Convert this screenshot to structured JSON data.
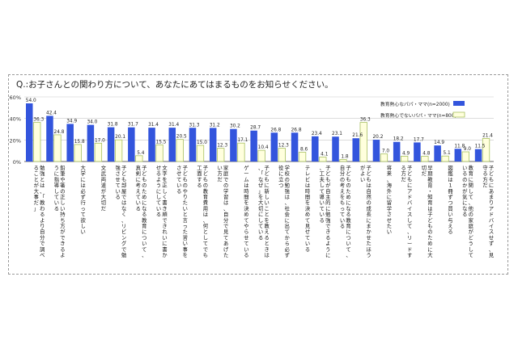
{
  "question": "Q.:お子さんとの関わり方について、あなたにあてはまるものをお知らせください。",
  "chart_data": {
    "type": "bar",
    "ylim": [
      0,
      60
    ],
    "yticks": [
      "0%",
      "20%",
      "40%",
      "60%"
    ],
    "colors": {
      "series1": "#3355dd",
      "series2": "#ffffdd",
      "series2_border": "#a8c060"
    },
    "series": [
      {
        "name": "教育熱心なパパ・ママ(n=2000)",
        "values": [
          54.0,
          42.4,
          34.9,
          34.0,
          31.8,
          31.7,
          31.4,
          31.4,
          31.3,
          31.2,
          30.2,
          28.7,
          26.8,
          26.8,
          23.4,
          23.1,
          21.6,
          20.2,
          18.2,
          17.7,
          14.9,
          11.8,
          11.5
        ]
      },
      {
        "name": "教育熱心でないパパ・ママ(n=800)",
        "values": [
          36.3,
          24.8,
          15.8,
          17.0,
          20.1,
          5.4,
          15.5,
          20.5,
          15.0,
          12.3,
          17.1,
          10.4,
          12.3,
          8.6,
          4.1,
          1.8,
          36.3,
          7.0,
          4.9,
          4.8,
          5.1,
          9.0,
          21.4
        ]
      }
    ],
    "value_labels": [
      [
        "54.0",
        "36.3"
      ],
      [
        "42.4",
        "24.8"
      ],
      [
        "34.9",
        "15.8"
      ],
      [
        "34.0",
        "17.0"
      ],
      [
        "31.8",
        "20.1"
      ],
      [
        "31.7",
        "5.4"
      ],
      [
        "31.4",
        "15.5"
      ],
      [
        "31.4",
        "20.5"
      ],
      [
        "31.3",
        "15.0"
      ],
      [
        "31.2",
        "12.3"
      ],
      [
        "30.2",
        "17.1"
      ],
      [
        "28.7",
        "10.4"
      ],
      [
        "26.8",
        "12.3"
      ],
      [
        "26.8",
        "8.6"
      ],
      [
        "23.4",
        "4.1"
      ],
      [
        "23.1",
        "1.8"
      ],
      [
        "21.6",
        "36.3"
      ],
      [
        "20.2",
        "7.0"
      ],
      [
        "18.2",
        "4.9"
      ],
      [
        "17.7",
        "4.8"
      ],
      [
        "14.9",
        "5.1"
      ],
      [
        "11.8",
        "9.0"
      ],
      [
        "11.5",
        "21.4"
      ]
    ],
    "categories": [
      "勉強とは、「教わるより自分で調べることが大事だ」",
      "鉛筆や箸の正しい持ち方ができるように指導している",
      "大学には必ず行って欲しい",
      "文武両道が大切だ",
      "子ども部屋ではなく、リビングで勉強させている",
      "子どものためになる教育について、真剣に考えている",
      "文字を正しく書き順できれいに書かせるようにしている",
      "子どものやりたいと言った習い事をさせている",
      "子どもの教育費用は、何としてでも工面する",
      "家庭での学習は、自分で見てあげたい方だ",
      "ゲームは時間を決めてやらせている",
      "子どもに新しいことを教えるときは、「なぜ」を大切にしている",
      "学校の勉強は、社会に出てから必ず役に立つ",
      "テレビは時間を決めて見せている",
      "子どもが自主的に勉強できるように、工夫して導いている",
      "子どものためになる教育について、自分の考えをもっている",
      "子どもは自然の成長にまかせたほうがよい",
      "将来、海外に留学させたい",
      "子どもにアドバイスして、リードする方だ",
      "早期教育・知育は子どものために大切だ",
      "図鑑は1冊ずつ買い与える",
      "教育に関して、他の家庭がどうしているのかが気になる",
      "子どもにあまりアドバイスせず、見守る方だ"
    ]
  }
}
